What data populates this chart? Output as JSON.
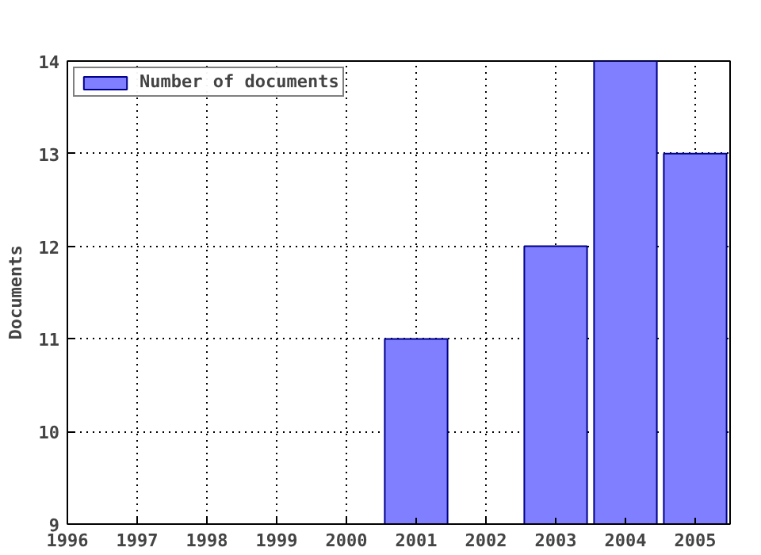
{
  "chart_data": {
    "type": "bar",
    "ylabel": "Documents",
    "x": [
      2001,
      2003,
      2004,
      2005
    ],
    "series": [
      {
        "name": "Number of documents",
        "color": "#7f7fff",
        "values": [
          11,
          12,
          14,
          13
        ]
      }
    ],
    "xlim": [
      1996,
      2005.5
    ],
    "xticks": [
      1996,
      1997,
      1998,
      1999,
      2000,
      2001,
      2002,
      2003,
      2004,
      2005
    ],
    "ylim": [
      9,
      14
    ],
    "yticks": [
      9,
      10,
      11,
      12,
      13,
      14
    ],
    "grid": true,
    "legend": "top left"
  }
}
